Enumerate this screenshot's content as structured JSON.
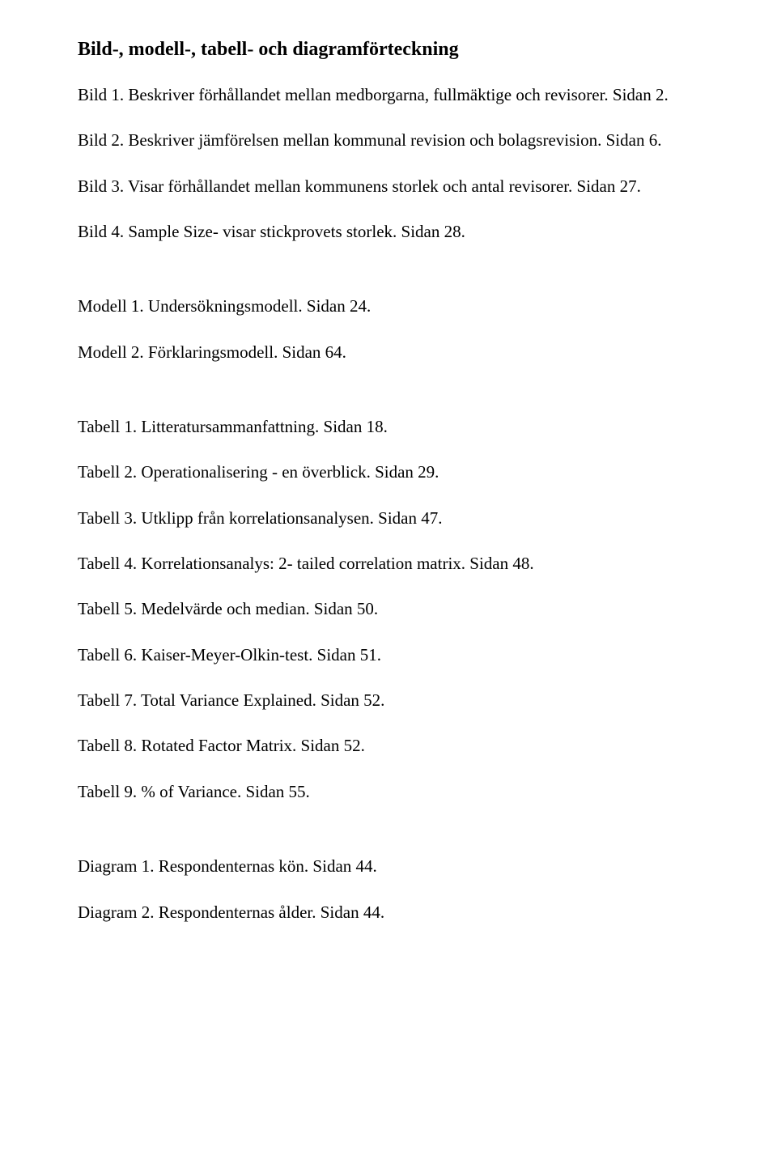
{
  "heading": "Bild-, modell-, tabell- och diagramförteckning",
  "bild": [
    "Bild 1. Beskriver förhållandet mellan medborgarna, fullmäktige och revisorer. Sidan 2.",
    "Bild 2. Beskriver jämförelsen mellan kommunal revision och bolagsrevision. Sidan 6.",
    "Bild 3. Visar förhållandet mellan kommunens storlek och antal revisorer. Sidan 27.",
    "Bild 4. Sample Size- visar stickprovets storlek. Sidan 28."
  ],
  "modell": [
    "Modell 1. Undersökningsmodell. Sidan 24.",
    "Modell 2. Förklaringsmodell. Sidan 64."
  ],
  "tabell": [
    "Tabell 1. Litteratursammanfattning. Sidan 18.",
    "Tabell 2. Operationalisering - en överblick. Sidan 29.",
    "Tabell 3. Utklipp från korrelationsanalysen. Sidan 47.",
    "Tabell 4. Korrelationsanalys: 2- tailed correlation matrix. Sidan 48.",
    "Tabell 5. Medelvärde och median. Sidan 50.",
    "Tabell 6. Kaiser-Meyer-Olkin-test. Sidan 51.",
    "Tabell 7. Total Variance Explained. Sidan 52.",
    "Tabell 8. Rotated Factor Matrix. Sidan 52.",
    "Tabell 9. % of Variance. Sidan 55."
  ],
  "diagram": [
    "Diagram 1. Respondenternas kön. Sidan 44.",
    "Diagram 2. Respondenternas ålder. Sidan 44."
  ]
}
